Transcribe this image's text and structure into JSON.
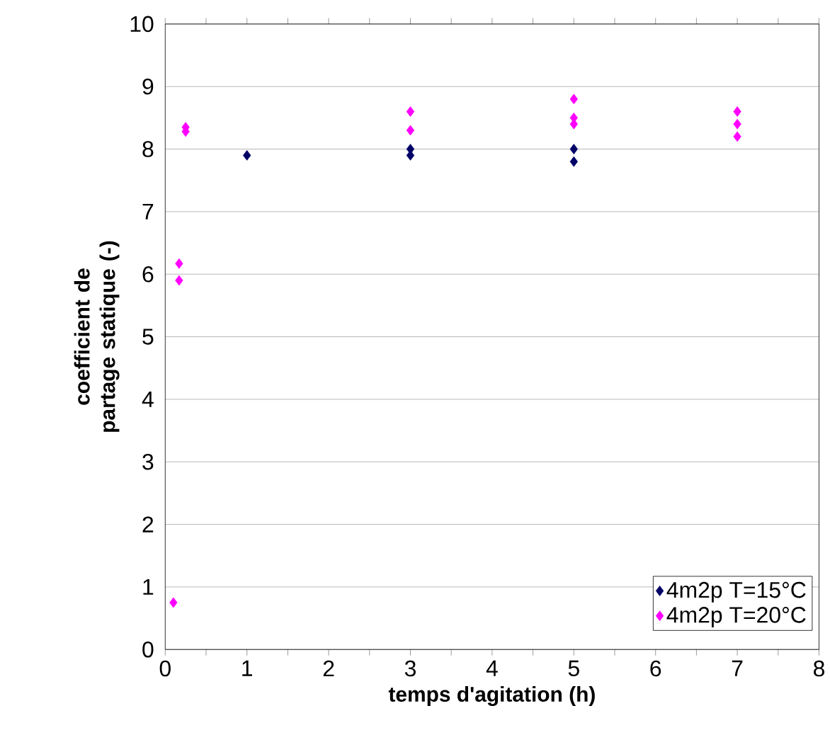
{
  "chart_data": {
    "type": "scatter",
    "xlabel": "temps d'agitation (h)",
    "ylabel": "coefficient de partage statique (-)",
    "series": [
      {
        "name": "4m2p T=15°C",
        "color": "#000066",
        "x": [
          1,
          3,
          3,
          5,
          5
        ],
        "values": [
          7.9,
          8.0,
          7.9,
          8.0,
          7.8
        ]
      },
      {
        "name": "4m2p T=20°C",
        "color": "#ff00ff",
        "x": [
          0.1,
          0.17,
          0.17,
          0.25,
          0.25,
          3,
          3,
          5,
          5,
          5,
          7,
          7,
          7
        ],
        "values": [
          0.75,
          6.17,
          5.9,
          8.35,
          8.28,
          8.6,
          8.3,
          8.8,
          8.5,
          8.4,
          8.6,
          8.4,
          8.2
        ]
      }
    ],
    "xlim": [
      0,
      8
    ],
    "ylim": [
      0,
      10
    ],
    "xticks": [
      0,
      {
        "value": 0.5,
        "label": null
      },
      1,
      {
        "value": 1.5,
        "label": null
      },
      2,
      {
        "value": 2.5,
        "label": null
      },
      3,
      {
        "value": 3.5,
        "label": null
      },
      4,
      {
        "value": 4.5,
        "label": null
      },
      5,
      {
        "value": 5.5,
        "label": null
      },
      6,
      {
        "value": 6.5,
        "label": null
      },
      7,
      {
        "value": 7.5,
        "label": null
      },
      8
    ],
    "yticks": [
      0,
      1,
      2,
      3,
      4,
      5,
      6,
      7,
      8,
      9,
      10
    ],
    "grid": "y",
    "legend": "bottom right",
    "marker": "diamond"
  }
}
